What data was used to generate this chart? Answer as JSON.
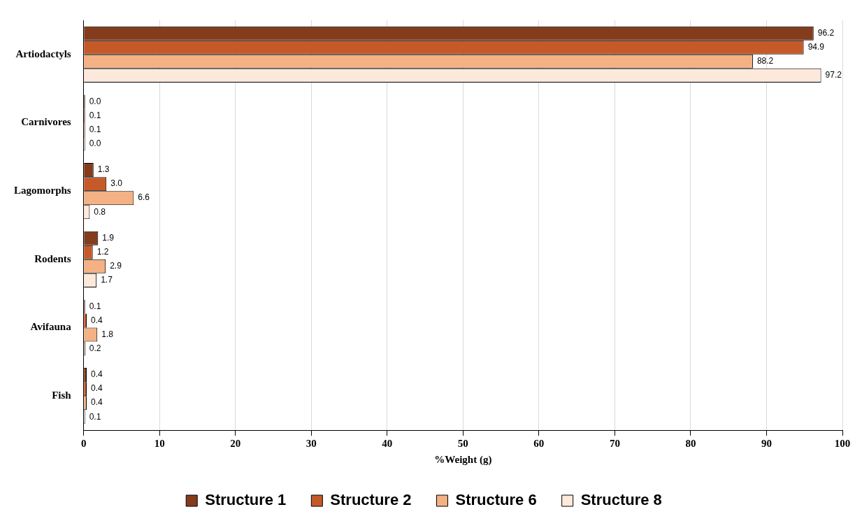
{
  "chart_data": {
    "type": "bar",
    "orientation": "horizontal",
    "xlabel": "%Weight (g)",
    "categories": [
      "Artiodactyls",
      "Carnivores",
      "Lagomorphs",
      "Rodents",
      "Avifauna",
      "Fish"
    ],
    "series": [
      {
        "name": "Structure 1",
        "color": "#843c1c",
        "values": [
          96.2,
          0.0,
          1.3,
          1.9,
          0.1,
          0.4
        ],
        "value_labels": [
          "96.2",
          "0.0",
          "1.3",
          "1.9",
          "0.1",
          "0.4"
        ]
      },
      {
        "name": "Structure 2",
        "color": "#c55a28",
        "values": [
          94.9,
          0.1,
          3.0,
          1.2,
          0.4,
          0.4
        ],
        "value_labels": [
          "94.9",
          "0.1",
          "3.0",
          "1.2",
          "0.4",
          "0.4"
        ]
      },
      {
        "name": "Structure 6",
        "color": "#f4b183",
        "values": [
          88.2,
          0.1,
          6.6,
          2.9,
          1.8,
          0.4
        ],
        "value_labels": [
          "88.2",
          "0.1",
          "6.6",
          "2.9",
          "1.8",
          "0.4"
        ]
      },
      {
        "name": "Structure 8",
        "color": "#fde9dc",
        "values": [
          97.2,
          0.0,
          0.8,
          1.7,
          0.2,
          0.1
        ],
        "value_labels": [
          "97.2",
          "0.0",
          "0.8",
          "1.7",
          "0.2",
          "0.1"
        ]
      }
    ],
    "xlim": [
      0,
      100
    ],
    "xticks": [
      0,
      10,
      20,
      30,
      40,
      50,
      60,
      70,
      80,
      90,
      100
    ],
    "grid": "x",
    "legend": "bottom"
  }
}
